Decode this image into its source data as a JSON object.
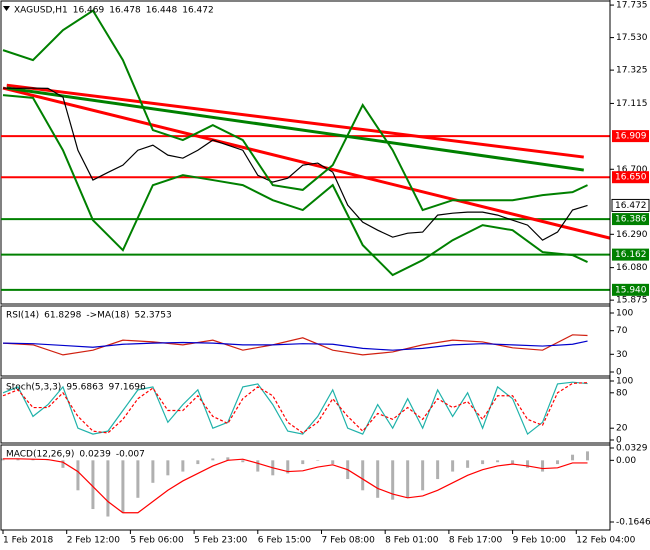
{
  "chart_data": [
    {
      "type": "line",
      "title": "XAGUSD,H1",
      "ohlc": [
        16.469,
        16.478,
        16.448,
        16.472
      ],
      "xlim": [
        0,
        162
      ],
      "xticks": [
        {
          "value": 0,
          "label": "1 Feb 2018"
        },
        {
          "value": 17,
          "label": "2 Feb 12:00"
        },
        {
          "value": 34,
          "label": "5 Feb 06:00"
        },
        {
          "value": 51,
          "label": "5 Feb 23:00"
        },
        {
          "value": 68,
          "label": "6 Feb 15:00"
        },
        {
          "value": 85,
          "label": "7 Feb 08:00"
        },
        {
          "value": 102,
          "label": "8 Feb 01:00"
        },
        {
          "value": 119,
          "label": "8 Feb 17:00"
        },
        {
          "value": 136,
          "label": "9 Feb 10:00"
        },
        {
          "value": 153,
          "label": "12 Feb 04:00"
        }
      ],
      "ylim": [
        15.857,
        17.767
      ],
      "yticks": [
        17.735,
        {
          "value": 17.53,
          "label": "17.530"
        },
        17.325,
        17.115,
        {
          "value": 16.7,
          "label": "16.700"
        },
        {
          "value": 16.29,
          "label": "16.290"
        },
        {
          "value": 16.08,
          "label": "16.080"
        },
        15.875
      ],
      "series": [
        {
          "color": "#000000",
          "x": [
            0,
            4,
            8,
            12,
            16,
            20,
            24,
            28,
            32,
            36,
            40,
            44,
            48,
            52,
            56,
            60,
            64,
            68,
            72,
            76,
            80,
            84,
            88,
            92,
            96,
            100,
            104,
            108,
            112,
            116,
            120,
            124,
            128,
            132,
            136,
            140,
            144,
            148,
            152,
            156
          ],
          "values": [
            17.212,
            17.21,
            17.212,
            17.21,
            17.155,
            16.82,
            16.632,
            16.68,
            16.726,
            16.82,
            16.852,
            16.789,
            16.77,
            16.82,
            16.884,
            16.852,
            16.82,
            16.662,
            16.619,
            16.644,
            16.726,
            16.739,
            16.682,
            16.474,
            16.367,
            16.316,
            16.272,
            16.297,
            16.304,
            16.411,
            16.423,
            16.43,
            16.43,
            16.411,
            16.379,
            16.348,
            16.253,
            16.304,
            16.443,
            16.472
          ]
        },
        {
          "color": "#008000",
          "x": [
            0,
            8,
            16,
            24,
            32,
            40,
            48,
            56,
            64,
            72,
            80,
            88,
            96,
            104,
            112,
            120,
            128,
            136,
            144,
            152,
            156
          ],
          "values": [
            17.451,
            17.388,
            17.577,
            17.7,
            17.388,
            16.947,
            16.884,
            16.978,
            16.884,
            16.6,
            16.57,
            16.726,
            17.105,
            16.82,
            16.443,
            16.505,
            16.505,
            16.505,
            16.537,
            16.556,
            16.6
          ]
        },
        {
          "color": "#008000",
          "x": [
            0,
            8,
            16,
            24,
            32,
            40,
            48,
            56,
            64,
            72,
            80,
            88,
            96,
            104,
            112,
            120,
            128,
            136,
            144,
            152,
            156
          ],
          "values": [
            17.167,
            17.15,
            16.82,
            16.379,
            16.19,
            16.6,
            16.663,
            16.632,
            16.6,
            16.505,
            16.443,
            16.6,
            16.222,
            16.033,
            16.127,
            16.253,
            16.348,
            16.316,
            16.178,
            16.159,
            16.115
          ]
        }
      ],
      "trend_lines": [
        {
          "color": "#ff0000",
          "x": [
            0,
            162
          ],
          "values": [
            17.212,
            16.266
          ]
        },
        {
          "color": "#ff0000",
          "x": [
            1,
            155
          ],
          "values": [
            17.23,
            16.777
          ]
        },
        {
          "color": "#008000",
          "x": [
            1,
            155
          ],
          "values": [
            17.212,
            16.695
          ]
        }
      ],
      "levels": [
        {
          "value": 16.909,
          "label": "16.909",
          "color": "#ff0000"
        },
        {
          "value": 16.65,
          "label": "16.650",
          "color": "#ff0000"
        },
        {
          "value": 16.386,
          "label": "16.386",
          "color": "#008000"
        },
        {
          "value": 16.162,
          "label": "16.162",
          "color": "#008000"
        },
        {
          "value": 15.94,
          "label": "15.940",
          "color": "#008000"
        }
      ]
    },
    {
      "type": "line",
      "ylim": [
        0,
        100
      ],
      "yticks": [
        0,
        30,
        70,
        100
      ],
      "series": [
        {
          "name": "RSI(14)",
          "color": "#d02010",
          "x": [
            0,
            8,
            16,
            24,
            32,
            40,
            48,
            56,
            64,
            72,
            80,
            88,
            96,
            104,
            112,
            120,
            128,
            136,
            144,
            152,
            156
          ],
          "values": [
            49,
            46,
            29,
            37,
            54,
            51,
            46,
            54,
            37,
            46,
            58,
            37,
            29,
            34,
            46,
            54,
            51,
            41,
            37,
            63,
            61.8298
          ]
        },
        {
          "name": "->MA(18)",
          "color": "#0000cc",
          "x": [
            0,
            8,
            16,
            24,
            32,
            40,
            48,
            56,
            64,
            72,
            80,
            88,
            96,
            104,
            112,
            120,
            128,
            136,
            144,
            152,
            156
          ],
          "values": [
            49,
            48,
            45,
            42,
            47,
            49,
            50,
            49,
            46,
            46,
            48,
            47,
            40,
            37,
            40,
            46,
            48,
            46,
            44,
            47,
            52.3753
          ]
        }
      ]
    },
    {
      "type": "line",
      "ylim": [
        0,
        100
      ],
      "yticks": [
        0,
        20,
        80,
        100
      ],
      "series": [
        {
          "name": "Stoch(5,3,3)",
          "color": "#20b2aa",
          "x": [
            0,
            4,
            8,
            12,
            16,
            20,
            24,
            28,
            32,
            36,
            40,
            44,
            48,
            52,
            56,
            60,
            64,
            68,
            72,
            76,
            80,
            84,
            88,
            92,
            96,
            100,
            104,
            108,
            112,
            116,
            120,
            124,
            128,
            132,
            136,
            140,
            144,
            148,
            152,
            156
          ],
          "values": [
            80,
            90,
            40,
            60,
            90,
            20,
            10,
            15,
            50,
            85,
            90,
            30,
            60,
            85,
            20,
            30,
            90,
            95,
            60,
            15,
            10,
            40,
            85,
            20,
            10,
            60,
            20,
            70,
            20,
            85,
            40,
            80,
            20,
            90,
            70,
            10,
            30,
            95,
            98,
            95.6863
          ]
        },
        {
          "color": "#ff0000",
          "dash": true,
          "x": [
            0,
            4,
            8,
            12,
            16,
            20,
            24,
            28,
            32,
            36,
            40,
            44,
            48,
            52,
            56,
            60,
            64,
            68,
            72,
            76,
            80,
            84,
            88,
            92,
            96,
            100,
            104,
            108,
            112,
            116,
            120,
            124,
            128,
            132,
            136,
            140,
            144,
            148,
            152,
            156
          ],
          "values": [
            75,
            85,
            55,
            55,
            80,
            40,
            15,
            12,
            35,
            70,
            88,
            50,
            50,
            75,
            40,
            28,
            70,
            90,
            75,
            30,
            12,
            30,
            70,
            40,
            15,
            45,
            35,
            55,
            35,
            70,
            55,
            65,
            35,
            75,
            75,
            35,
            25,
            80,
            96,
            97.1696
          ]
        }
      ]
    },
    {
      "type": "bar",
      "ylim": [
        -0.1646,
        0.0329
      ],
      "yticks": [
        -0.1646,
        {
          "value": 0,
          "label": "0.00"
        },
        0.0329
      ],
      "series": [
        {
          "name": "MACD(12,26,9)",
          "type": "bar",
          "color": "#b0b0b0",
          "x": [
            0,
            4,
            8,
            12,
            16,
            20,
            24,
            28,
            32,
            36,
            40,
            44,
            48,
            52,
            56,
            60,
            64,
            68,
            72,
            76,
            80,
            84,
            88,
            92,
            96,
            100,
            104,
            108,
            112,
            116,
            120,
            124,
            128,
            132,
            136,
            140,
            144,
            148,
            152,
            156
          ],
          "values": [
            0.005,
            0.004,
            0.003,
            0.002,
            -0.02,
            -0.08,
            -0.13,
            -0.15,
            -0.14,
            -0.1,
            -0.06,
            -0.04,
            -0.03,
            -0.01,
            0.005,
            0.008,
            -0.005,
            -0.03,
            -0.04,
            -0.035,
            -0.01,
            0.0,
            -0.01,
            -0.05,
            -0.08,
            -0.1,
            -0.105,
            -0.1,
            -0.08,
            -0.05,
            -0.03,
            -0.02,
            -0.01,
            -0.005,
            -0.01,
            -0.02,
            -0.03,
            -0.01,
            0.015,
            0.0239
          ]
        },
        {
          "color": "#ff0000",
          "x": [
            0,
            4,
            8,
            12,
            16,
            20,
            24,
            28,
            32,
            36,
            40,
            44,
            48,
            52,
            56,
            60,
            64,
            68,
            72,
            76,
            80,
            84,
            88,
            92,
            96,
            100,
            104,
            108,
            112,
            116,
            120,
            124,
            128,
            132,
            136,
            140,
            144,
            148,
            152,
            156
          ],
          "values": [
            0.004,
            0.004,
            0.003,
            0.002,
            -0.005,
            -0.03,
            -0.07,
            -0.11,
            -0.14,
            -0.14,
            -0.11,
            -0.08,
            -0.055,
            -0.035,
            -0.015,
            0.0,
            0.003,
            -0.008,
            -0.02,
            -0.03,
            -0.028,
            -0.018,
            -0.012,
            -0.025,
            -0.05,
            -0.075,
            -0.09,
            -0.1,
            -0.095,
            -0.08,
            -0.06,
            -0.04,
            -0.025,
            -0.015,
            -0.01,
            -0.015,
            -0.022,
            -0.02,
            -0.007,
            -0.007
          ]
        }
      ]
    }
  ]
}
